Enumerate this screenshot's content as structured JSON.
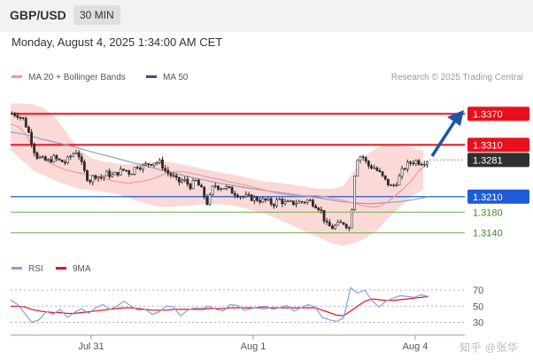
{
  "header": {
    "symbol": "GBP/USD",
    "timeframe": "30 MIN"
  },
  "datetime": "Monday, August 4, 2025 1:34:00 AM CET",
  "watermark": "知乎 @张华",
  "colors": {
    "resistance": "#e8101c",
    "pivot": "#1f5bd6",
    "support": "#6fae4a",
    "forecast": "#1e56a8",
    "candle": "#2a2a2a",
    "ma20": "#f29a94",
    "bands": "#f7b9b5",
    "ma50": "#8ca0c8",
    "rsi": "#7aa2e6",
    "rsi_ma": "#e8101c"
  },
  "chart_data": [
    {
      "type": "candlestick",
      "legend": [
        {
          "name": "MA 20 + Bollinger Bands",
          "color": "#f29a94"
        },
        {
          "name": "MA 50",
          "color": "#3d4f7a"
        }
      ],
      "credit": "Research © 2025 Trading Central",
      "x_ticks": [
        "Jul 31",
        "Aug 1",
        "Aug 4"
      ],
      "y_range": [
        1.3105,
        1.3405
      ],
      "levels": [
        {
          "value": 1.337,
          "label": "1.3370",
          "kind": "resistance"
        },
        {
          "value": 1.331,
          "label": "1.3310",
          "kind": "resistance"
        },
        {
          "value": 1.321,
          "label": "1.3210",
          "kind": "pivot"
        },
        {
          "value": 1.318,
          "label": "1.3180",
          "kind": "support"
        },
        {
          "value": 1.314,
          "label": "1.3140",
          "kind": "support"
        }
      ],
      "last_price": "1.3281",
      "last_value": 1.3281,
      "close_path": [
        1.3371,
        1.3368,
        1.3358,
        1.3328,
        1.329,
        1.3282,
        1.3278,
        1.3285,
        1.3279,
        1.3276,
        1.329,
        1.33,
        1.3262,
        1.324,
        1.3252,
        1.3246,
        1.3255,
        1.325,
        1.3258,
        1.3262,
        1.3255,
        1.327,
        1.3268,
        1.3274,
        1.3277,
        1.3276,
        1.3258,
        1.325,
        1.3238,
        1.3242,
        1.323,
        1.324,
        1.3222,
        1.3195,
        1.3233,
        1.3228,
        1.3228,
        1.322,
        1.3215,
        1.321,
        1.3208,
        1.3206,
        1.3203,
        1.3202,
        1.3195,
        1.3205,
        1.3197,
        1.3197,
        1.3199,
        1.32,
        1.3203,
        1.3196,
        1.3186,
        1.3155,
        1.315,
        1.3156,
        1.316,
        1.3147,
        1.3283,
        1.329,
        1.327,
        1.3267,
        1.3255,
        1.324,
        1.3228,
        1.324,
        1.3264,
        1.3275,
        1.3279,
        1.3276,
        1.3281
      ],
      "ma20_path": [
        1.335,
        1.3345,
        1.333,
        1.33,
        1.3285,
        1.3275,
        1.3268,
        1.3262,
        1.3258,
        1.3255,
        1.3252,
        1.325,
        1.3245,
        1.324,
        1.3238,
        1.3236,
        1.3238,
        1.324,
        1.3244,
        1.325,
        1.3256,
        1.3258,
        1.3258,
        1.3255,
        1.3252,
        1.3248,
        1.3245,
        1.3242,
        1.3238,
        1.3235,
        1.3232,
        1.3228,
        1.3224,
        1.322,
        1.3216,
        1.3214,
        1.3212,
        1.3212,
        1.3212,
        1.3212,
        1.321,
        1.3207,
        1.3204,
        1.32,
        1.3196,
        1.3192,
        1.319,
        1.3192,
        1.32,
        1.3212,
        1.3225,
        1.324,
        1.326,
        1.3272
      ],
      "band_upper": [
        1.339,
        1.339,
        1.3388,
        1.338,
        1.336,
        1.333,
        1.33,
        1.3285,
        1.3278,
        1.3275,
        1.3272,
        1.3274,
        1.3276,
        1.3278,
        1.3276,
        1.3272,
        1.3268,
        1.3262,
        1.3258,
        1.3254,
        1.325,
        1.3245,
        1.324,
        1.3238,
        1.3235,
        1.3232,
        1.3228,
        1.3225,
        1.3225,
        1.323,
        1.326,
        1.329,
        1.3305,
        1.3312,
        1.331,
        1.3305,
        1.3298
      ],
      "band_lower": [
        1.33,
        1.328,
        1.326,
        1.325,
        1.324,
        1.3232,
        1.3225,
        1.3222,
        1.322,
        1.3216,
        1.321,
        1.3202,
        1.3196,
        1.319,
        1.319,
        1.3192,
        1.3194,
        1.3196,
        1.3196,
        1.3194,
        1.319,
        1.3184,
        1.3178,
        1.317,
        1.316,
        1.315,
        1.314,
        1.313,
        1.312,
        1.3115,
        1.312,
        1.313,
        1.3145,
        1.317,
        1.319,
        1.321,
        1.3225
      ],
      "ma50_path": [
        1.3335,
        1.333,
        1.3322,
        1.3315,
        1.3308,
        1.33,
        1.3292,
        1.3285,
        1.3277,
        1.327,
        1.3262,
        1.3255,
        1.3248,
        1.3242,
        1.3236,
        1.3231,
        1.3226,
        1.3222,
        1.3218,
        1.3214,
        1.321,
        1.3206,
        1.3201,
        1.3198,
        1.3196,
        1.3198,
        1.32,
        1.3204,
        1.321
      ]
    },
    {
      "type": "line",
      "legend": [
        {
          "name": "RSI",
          "color": "#7aa2e6"
        },
        {
          "name": "9MA",
          "color": "#e8101c"
        }
      ],
      "y_range": [
        25,
        80
      ],
      "y_ticks": [
        70,
        50,
        30
      ],
      "rsi": [
        58,
        52,
        41,
        30,
        33,
        43,
        40,
        46,
        36,
        42,
        47,
        41,
        48,
        52,
        46,
        50,
        56,
        50,
        45,
        46,
        40,
        43,
        50,
        49,
        38,
        45,
        48,
        47,
        50,
        46,
        44,
        52,
        51,
        45,
        47,
        49,
        50,
        46,
        48,
        51,
        44,
        48,
        52,
        49,
        36,
        33,
        31,
        35,
        73,
        66,
        70,
        57,
        49,
        56,
        60,
        63,
        62,
        61,
        64,
        62
      ],
      "rsi_ma": [
        50,
        50,
        49,
        46,
        44,
        43,
        42,
        42,
        41,
        41,
        42,
        43,
        44,
        45,
        46,
        47,
        48,
        48,
        47,
        46,
        45,
        45,
        45,
        46,
        46,
        46,
        46,
        46,
        47,
        47,
        47,
        48,
        48,
        48,
        48,
        48,
        48,
        48,
        48,
        48,
        48,
        48,
        48,
        48,
        45,
        42,
        39,
        38,
        44,
        50,
        56,
        59,
        58,
        57,
        57,
        58,
        59,
        60,
        61,
        62
      ]
    }
  ]
}
